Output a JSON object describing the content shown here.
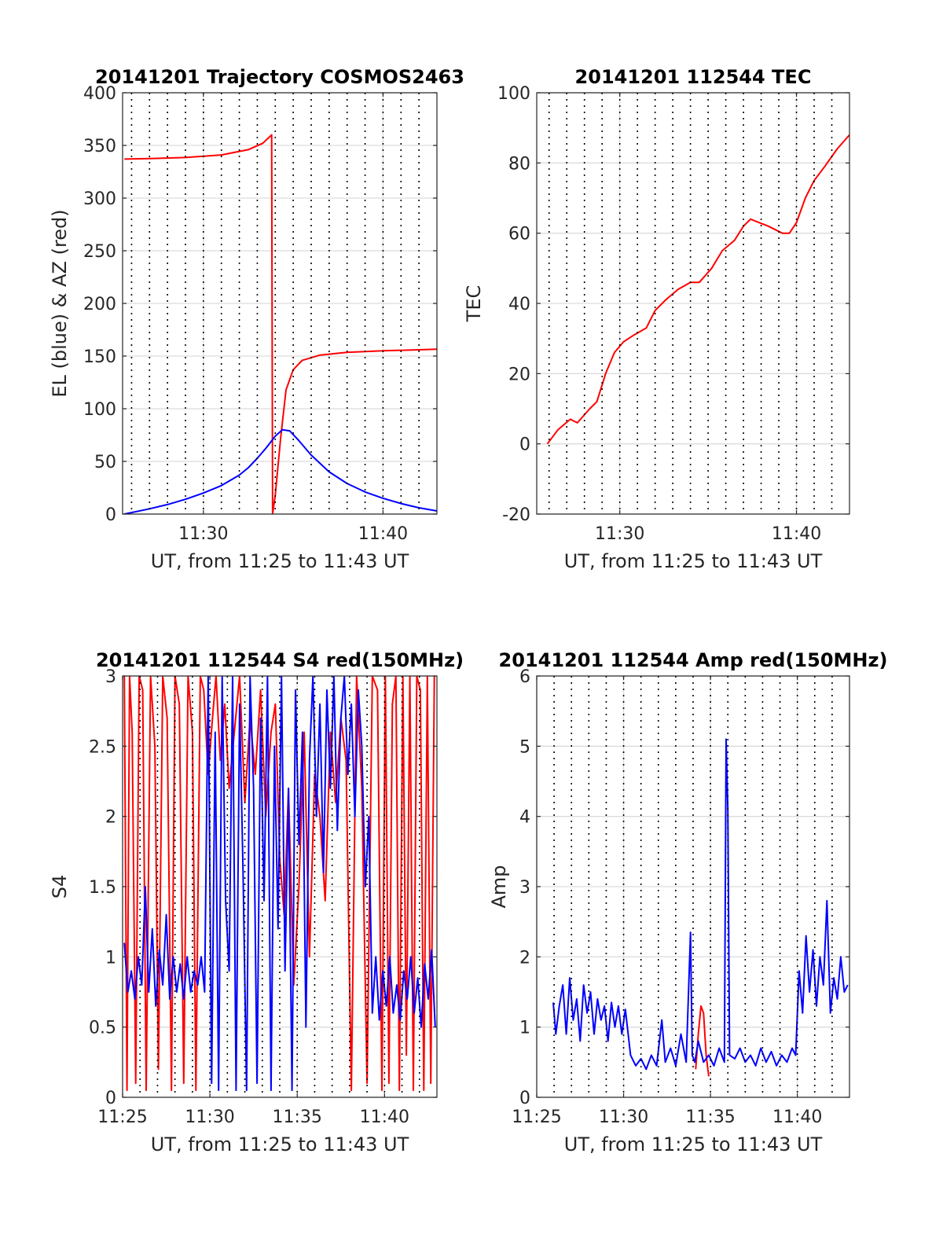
{
  "chart_data": [
    {
      "id": "trajectory",
      "type": "line",
      "title": "20141201 Trajectory COSMOS2463",
      "xlabel": "UT, from 11:25 to 11:43 UT",
      "ylabel": "EL (blue) & AZ (red)",
      "x_unit": "minutes past 11:00 UT",
      "xlim": [
        25.5,
        43.0
      ],
      "ylim": [
        0,
        400
      ],
      "xticks": [
        30,
        40
      ],
      "xtick_labels": [
        "11:30",
        "11:40"
      ],
      "yticks": [
        0,
        50,
        100,
        150,
        200,
        250,
        300,
        350,
        400
      ],
      "ytick_labels": [
        "0",
        "50",
        "100",
        "150",
        "200",
        "250",
        "300",
        "350",
        "400"
      ],
      "minor_dotted_x": [
        26,
        27,
        28,
        29,
        30,
        31,
        32,
        33,
        34,
        35,
        36,
        37,
        38,
        39,
        40,
        41,
        42
      ],
      "grid": true,
      "series": [
        {
          "color": "#ff0000",
          "line": "azimuth",
          "x": [
            25.6,
            27,
            29,
            31,
            32.5,
            33.3,
            33.8,
            33.85,
            34.0,
            34.3,
            34.6,
            35.0,
            35.5,
            36.5,
            38,
            40,
            42,
            43
          ],
          "y": [
            337,
            337.5,
            338.5,
            341,
            346,
            352,
            360,
            0,
            18,
            72,
            118,
            137,
            146,
            151,
            153.5,
            155,
            156,
            156.5
          ]
        },
        {
          "color": "#0000ff",
          "line": "elevation",
          "x": [
            25.6,
            27,
            28,
            29,
            30,
            31,
            32,
            32.5,
            33,
            33.5,
            34,
            34.4,
            34.8,
            35.3,
            36,
            37,
            38,
            39,
            40,
            41,
            42,
            43
          ],
          "y": [
            0,
            5,
            9,
            14,
            20,
            27,
            37,
            44,
            53,
            63,
            74,
            80,
            79,
            70,
            56,
            40,
            29,
            21,
            15,
            10,
            6,
            3
          ]
        }
      ]
    },
    {
      "id": "tec",
      "type": "line",
      "title": "20141201 112544 TEC",
      "xlabel": "UT, from 11:25 to 11:43 UT",
      "ylabel": "TEC",
      "x_unit": "minutes past 11:00 UT",
      "xlim": [
        25.3,
        43.0
      ],
      "ylim": [
        -20,
        100
      ],
      "xticks": [
        30,
        40
      ],
      "xtick_labels": [
        "11:30",
        "11:40"
      ],
      "yticks": [
        -20,
        0,
        20,
        40,
        60,
        80,
        100
      ],
      "ytick_labels": [
        "-20",
        "0",
        "20",
        "40",
        "60",
        "80",
        "100"
      ],
      "minor_dotted_x": [
        26,
        27,
        28,
        29,
        30,
        31,
        32,
        33,
        34,
        35,
        36,
        37,
        38,
        39,
        40,
        41,
        42
      ],
      "grid": true,
      "series": [
        {
          "color": "#ff0000",
          "x": [
            25.9,
            26.5,
            27.2,
            27.6,
            28.3,
            28.7,
            29.2,
            29.7,
            30.2,
            30.8,
            31.5,
            32.0,
            32.6,
            33.3,
            34.0,
            34.5,
            35.2,
            35.8,
            36.5,
            37.0,
            37.4,
            37.9,
            38.4,
            38.8,
            39.2,
            39.6,
            40.0,
            40.5,
            41.0,
            41.6,
            42.3,
            43.0
          ],
          "y": [
            0,
            4,
            7,
            6,
            10,
            12,
            20,
            26,
            29,
            31,
            33,
            38,
            41,
            44,
            46,
            46,
            50,
            55,
            58,
            62,
            64,
            63,
            62,
            61,
            60,
            60,
            63,
            70,
            75,
            79,
            84,
            88
          ]
        }
      ]
    },
    {
      "id": "s4",
      "type": "line",
      "title": "20141201 112544 S4 red(150MHz)",
      "xlabel": "UT, from 11:25 to 11:43 UT",
      "ylabel": "S4",
      "x_unit": "minutes past 11:00 UT",
      "xlim": [
        25.0,
        43.0
      ],
      "ylim": [
        0,
        3
      ],
      "xticks": [
        25,
        30,
        35,
        40
      ],
      "xtick_labels": [
        "11:25",
        "11:30",
        "11:35",
        "11:40"
      ],
      "yticks": [
        0,
        0.5,
        1,
        1.5,
        2,
        2.5,
        3
      ],
      "ytick_labels": [
        "0",
        "0.5",
        "1",
        "1.5",
        "2",
        "2.5",
        "3"
      ],
      "minor_dotted_x": [
        26,
        27,
        28,
        29,
        30,
        31,
        32,
        33,
        34,
        35,
        36,
        37,
        38,
        39,
        40,
        41,
        42
      ],
      "grid": true,
      "series": [
        {
          "color": "#ff0000",
          "x": [
            25.1,
            25.25,
            25.4,
            25.55,
            25.75,
            25.95,
            26.15,
            26.35,
            26.6,
            26.85,
            27.05,
            27.3,
            27.55,
            27.8,
            28.0,
            28.25,
            28.5,
            28.75,
            29.0,
            29.2,
            29.45,
            29.65,
            29.9,
            30.15,
            30.35,
            30.6,
            30.85,
            31.1,
            31.4,
            31.7,
            32.0,
            32.3,
            32.6,
            32.9,
            33.2,
            33.5,
            33.75,
            34.0,
            34.25,
            34.5,
            34.8,
            35.1,
            35.4,
            35.7,
            36.0,
            36.3,
            36.6,
            36.9,
            37.2,
            37.5,
            37.8,
            38.1,
            38.4,
            38.7,
            39.0,
            39.3,
            39.6,
            39.85,
            40.05,
            40.25,
            40.45,
            40.65,
            40.85,
            41.05,
            41.25,
            41.45,
            41.65,
            41.85,
            42.05,
            42.25,
            42.45,
            42.65,
            42.85
          ],
          "y": [
            3.0,
            0.05,
            3.0,
            2.6,
            0.1,
            3.0,
            2.9,
            0.05,
            3.0,
            2.5,
            0.2,
            3.0,
            2.7,
            0.05,
            3.0,
            2.8,
            0.1,
            3.0,
            2.6,
            0.05,
            3.0,
            2.9,
            2.3,
            2.7,
            3.0,
            2.4,
            2.8,
            2.2,
            2.6,
            3.0,
            2.1,
            2.7,
            2.3,
            2.9,
            2.0,
            2.6,
            2.8,
            1.7,
            1.3,
            2.2,
            0.8,
            1.5,
            2.6,
            1.0,
            2.3,
            2.0,
            1.4,
            2.6,
            2.1,
            2.7,
            2.4,
            0.05,
            3.0,
            2.2,
            0.1,
            3.0,
            2.9,
            0.05,
            3.0,
            0.1,
            2.8,
            3.0,
            0.05,
            3.0,
            0.3,
            3.0,
            0.05,
            3.0,
            2.9,
            0.05,
            3.0,
            0.1,
            3.0
          ]
        },
        {
          "color": "#0000ff",
          "x": [
            25.1,
            25.3,
            25.5,
            25.7,
            25.9,
            26.1,
            26.3,
            26.5,
            26.7,
            26.9,
            27.1,
            27.3,
            27.5,
            27.7,
            27.9,
            28.1,
            28.3,
            28.5,
            28.7,
            28.9,
            29.1,
            29.3,
            29.5,
            29.7,
            29.9,
            30.1,
            30.3,
            30.5,
            30.7,
            30.9,
            31.1,
            31.3,
            31.5,
            31.7,
            31.9,
            32.1,
            32.3,
            32.5,
            32.7,
            32.9,
            33.1,
            33.3,
            33.5,
            33.7,
            33.9,
            34.1,
            34.3,
            34.5,
            34.7,
            34.9,
            35.1,
            35.3,
            35.5,
            35.7,
            35.9,
            36.1,
            36.3,
            36.5,
            36.7,
            36.9,
            37.1,
            37.3,
            37.5,
            37.7,
            37.9,
            38.1,
            38.3,
            38.5,
            38.7,
            38.9,
            39.1,
            39.3,
            39.5,
            39.7,
            39.9,
            40.1,
            40.3,
            40.5,
            40.7,
            40.9,
            41.1,
            41.3,
            41.5,
            41.7,
            41.9,
            42.1,
            42.3,
            42.5,
            42.7,
            42.9
          ],
          "y": [
            1.1,
            0.75,
            0.9,
            0.7,
            1.0,
            0.8,
            1.5,
            0.75,
            1.2,
            0.65,
            1.05,
            0.8,
            1.3,
            0.7,
            1.0,
            0.75,
            0.95,
            0.7,
            1.0,
            0.75,
            0.9,
            0.8,
            1.0,
            0.75,
            3.0,
            0.1,
            2.6,
            0.05,
            3.0,
            1.4,
            0.9,
            3.0,
            0.05,
            2.8,
            1.6,
            0.05,
            3.0,
            2.2,
            0.1,
            2.7,
            1.4,
            3.0,
            0.05,
            2.5,
            1.2,
            3.0,
            0.9,
            2.2,
            0.05,
            2.9,
            1.8,
            2.6,
            0.5,
            2.4,
            3.0,
            2.0,
            2.8,
            1.6,
            2.9,
            2.2,
            3.0,
            1.9,
            2.7,
            3.0,
            2.3,
            2.8,
            2.0,
            2.9,
            2.5,
            1.5,
            2.0,
            0.6,
            1.0,
            0.55,
            0.9,
            0.65,
            1.0,
            0.6,
            0.8,
            0.55,
            0.9,
            0.7,
            1.0,
            0.6,
            0.85,
            0.5,
            0.95,
            0.7,
            1.05,
            0.5
          ]
        }
      ]
    },
    {
      "id": "amp",
      "type": "line",
      "title": "20141201 112544 Amp red(150MHz)",
      "xlabel": "UT, from 11:25 to 11:43 UT",
      "ylabel": "Amp",
      "x_unit": "minutes past 11:00 UT",
      "xlim": [
        25.0,
        43.0
      ],
      "ylim": [
        0,
        6
      ],
      "xticks": [
        25,
        30,
        35,
        40
      ],
      "xtick_labels": [
        "11:25",
        "11:30",
        "11:35",
        "11:40"
      ],
      "yticks": [
        0,
        1,
        2,
        3,
        4,
        5,
        6
      ],
      "ytick_labels": [
        "0",
        "1",
        "2",
        "3",
        "4",
        "5",
        "6"
      ],
      "minor_dotted_x": [
        26,
        27,
        28,
        29,
        30,
        31,
        32,
        33,
        34,
        35,
        36,
        37,
        38,
        39,
        40,
        41,
        42
      ],
      "grid": true,
      "series": [
        {
          "color": "#ff0000",
          "x": [
            34.15,
            34.3,
            34.45,
            34.6,
            34.75,
            34.9
          ],
          "y": [
            0.4,
            0.9,
            1.3,
            1.2,
            0.6,
            0.3
          ]
        },
        {
          "color": "#0000ff",
          "x": [
            25.95,
            26.1,
            26.3,
            26.5,
            26.7,
            26.9,
            27.1,
            27.3,
            27.5,
            27.7,
            27.9,
            28.1,
            28.3,
            28.5,
            28.7,
            28.9,
            29.1,
            29.3,
            29.5,
            29.7,
            29.9,
            30.1,
            30.4,
            30.7,
            31.0,
            31.3,
            31.6,
            31.9,
            32.2,
            32.4,
            32.7,
            33.0,
            33.3,
            33.6,
            33.85,
            33.95,
            34.1,
            34.3,
            34.6,
            34.9,
            35.2,
            35.5,
            35.8,
            35.9,
            36.0,
            36.1,
            36.4,
            36.7,
            37.0,
            37.3,
            37.6,
            37.9,
            38.2,
            38.5,
            38.8,
            39.1,
            39.4,
            39.7,
            39.9,
            40.1,
            40.3,
            40.5,
            40.7,
            40.9,
            41.1,
            41.3,
            41.5,
            41.7,
            41.9,
            42.1,
            42.3,
            42.5,
            42.7,
            42.9
          ],
          "y": [
            1.35,
            0.9,
            1.3,
            1.6,
            0.9,
            1.7,
            1.1,
            1.4,
            0.8,
            1.6,
            1.2,
            1.5,
            0.9,
            1.4,
            1.1,
            1.3,
            0.8,
            1.35,
            1.0,
            1.3,
            0.9,
            1.25,
            0.6,
            0.45,
            0.55,
            0.4,
            0.6,
            0.45,
            1.1,
            0.5,
            0.7,
            0.45,
            0.9,
            0.5,
            2.35,
            0.6,
            0.5,
            0.8,
            0.5,
            0.6,
            0.45,
            0.7,
            0.5,
            5.1,
            4.1,
            0.6,
            0.55,
            0.7,
            0.5,
            0.6,
            0.45,
            0.7,
            0.5,
            0.65,
            0.45,
            0.6,
            0.5,
            0.7,
            0.6,
            1.8,
            1.2,
            2.3,
            1.5,
            2.1,
            1.3,
            2.0,
            1.6,
            2.8,
            1.2,
            1.7,
            1.4,
            2.0,
            1.5,
            1.6
          ]
        }
      ]
    }
  ]
}
